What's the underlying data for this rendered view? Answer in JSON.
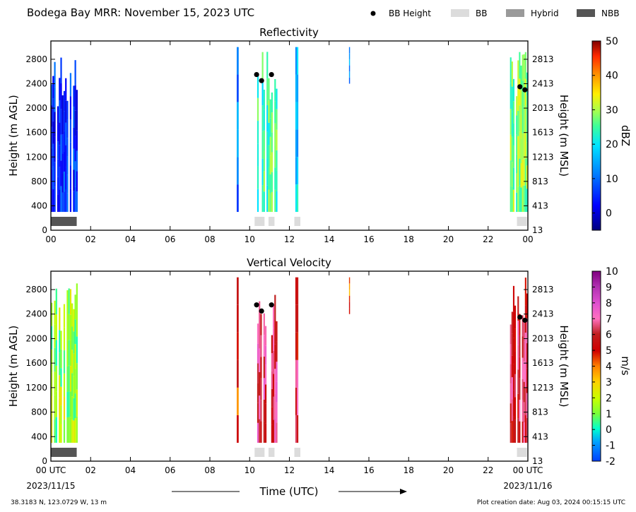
{
  "title": "Bodega Bay MRR:  November 15, 2023 UTC",
  "legend": [
    {
      "label": "BB Height",
      "kind": "dot",
      "color": "#000000"
    },
    {
      "label": "BB",
      "kind": "box",
      "color": "#dcdcdc"
    },
    {
      "label": "Hybrid",
      "kind": "box",
      "color": "#9a9a9a"
    },
    {
      "label": "NBB",
      "kind": "box",
      "color": "#555555"
    }
  ],
  "x_axis": {
    "label": "Time (UTC)",
    "ticks": [
      "00",
      "02",
      "04",
      "06",
      "08",
      "10",
      "12",
      "14",
      "16",
      "18",
      "20",
      "22",
      "00"
    ],
    "bottom_ticks": [
      "00 UTC",
      "02",
      "04",
      "06",
      "08",
      "10",
      "12",
      "14",
      "16",
      "18",
      "20",
      "22",
      "00 UTC"
    ],
    "start_date": "2023/11/15",
    "end_date": "2023/11/16"
  },
  "footer": {
    "location": "38.3183 N, 123.0729 W, 13 m",
    "created": "Plot creation date: Aug 03, 2024 00:15:15 UTC"
  },
  "chart_data": [
    {
      "type": "heatmap",
      "title": "Reflectivity",
      "ylabel": "Height (m AGL)",
      "y2label": "Height (m MSL)",
      "ylim": [
        0,
        3100
      ],
      "xlim": [
        0,
        24
      ],
      "yticks": [
        0,
        400,
        800,
        1200,
        1600,
        2000,
        2400,
        2800
      ],
      "y2ticks": [
        "13",
        "413",
        "813",
        "1213",
        "1613",
        "2013",
        "2413",
        "2813"
      ],
      "colorbar": {
        "label": "dBZ",
        "range": [
          -5,
          50
        ],
        "ticks": [
          0,
          10,
          20,
          30,
          40,
          50
        ]
      },
      "bb_height_points": [
        {
          "time": 10.35,
          "height": 2550
        },
        {
          "time": 10.6,
          "height": 2450
        },
        {
          "time": 11.1,
          "height": 2550
        },
        {
          "time": 23.6,
          "height": 2350
        },
        {
          "time": 23.85,
          "height": 2300
        }
      ],
      "bb_type_bars": [
        {
          "type": "NBB",
          "start": 0.0,
          "end": 1.3
        },
        {
          "type": "BB",
          "start": 10.25,
          "end": 10.75
        },
        {
          "type": "BB",
          "start": 10.95,
          "end": 11.25
        },
        {
          "type": "BB",
          "start": 12.25,
          "end": 12.55
        },
        {
          "type": "BB",
          "start": 23.45,
          "end": 23.95
        }
      ],
      "echo_periods": [
        {
          "start": 0.0,
          "end": 1.35,
          "bottom": 300,
          "top": 2900,
          "value": 5
        },
        {
          "start": 9.35,
          "end": 9.45,
          "bottom": 300,
          "top": 3000,
          "value": 12
        },
        {
          "start": 10.3,
          "end": 11.4,
          "bottom": 300,
          "top": 3000,
          "value": 25
        },
        {
          "start": 12.3,
          "end": 12.45,
          "bottom": 300,
          "top": 3000,
          "value": 18
        },
        {
          "start": 15.0,
          "end": 15.05,
          "bottom": 2400,
          "top": 3000,
          "value": 12
        },
        {
          "start": 23.1,
          "end": 24.0,
          "bottom": 300,
          "top": 3000,
          "value": 28
        }
      ]
    },
    {
      "type": "heatmap",
      "title": "Vertical Velocity",
      "ylabel": "Height (m AGL)",
      "y2label": "Height (m MSL)",
      "ylim": [
        0,
        3100
      ],
      "xlim": [
        0,
        24
      ],
      "yticks": [
        0,
        400,
        800,
        1200,
        1600,
        2000,
        2400,
        2800
      ],
      "y2ticks": [
        "13",
        "413",
        "813",
        "1213",
        "1613",
        "2013",
        "2413",
        "2813"
      ],
      "colorbar": {
        "label": "m/s",
        "range": [
          -2,
          10
        ],
        "ticks": [
          -2,
          -1,
          0,
          1,
          2,
          3,
          4,
          5,
          6,
          7,
          8,
          9,
          10
        ]
      },
      "bb_height_points": [
        {
          "time": 10.35,
          "height": 2550
        },
        {
          "time": 10.6,
          "height": 2450
        },
        {
          "time": 11.1,
          "height": 2550
        },
        {
          "time": 23.6,
          "height": 2350
        },
        {
          "time": 23.85,
          "height": 2300
        }
      ],
      "bb_type_bars": [
        {
          "type": "NBB",
          "start": 0.0,
          "end": 1.3
        },
        {
          "type": "BB",
          "start": 10.25,
          "end": 10.75
        },
        {
          "type": "BB",
          "start": 10.95,
          "end": 11.25
        },
        {
          "type": "BB",
          "start": 12.25,
          "end": 12.55
        },
        {
          "type": "BB",
          "start": 23.45,
          "end": 23.95
        }
      ],
      "echo_periods": [
        {
          "start": 0.0,
          "end": 1.35,
          "bottom": 300,
          "top": 2900,
          "value": 1.5
        },
        {
          "start": 9.35,
          "end": 9.45,
          "bottom": 300,
          "top": 3000,
          "value": 5
        },
        {
          "start": 10.3,
          "end": 11.4,
          "bottom": 300,
          "top": 3000,
          "value": 6.5
        },
        {
          "start": 12.3,
          "end": 12.45,
          "bottom": 300,
          "top": 3000,
          "value": 6
        },
        {
          "start": 15.0,
          "end": 15.05,
          "bottom": 2400,
          "top": 3000,
          "value": 4
        },
        {
          "start": 23.1,
          "end": 24.0,
          "bottom": 300,
          "top": 3000,
          "value": 6
        }
      ]
    }
  ]
}
